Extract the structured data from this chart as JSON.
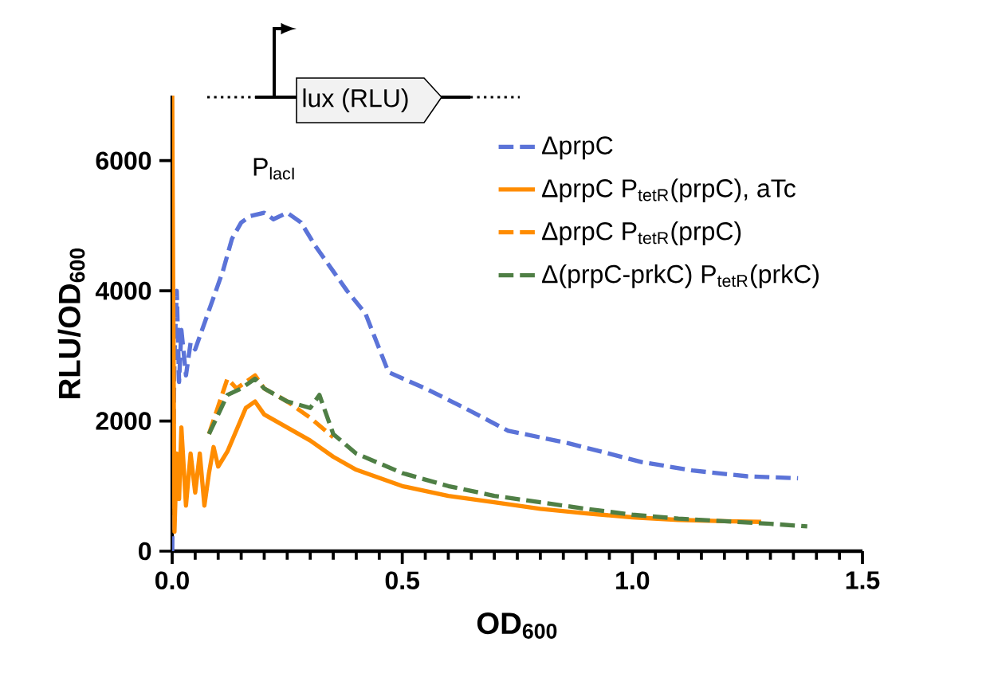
{
  "chart_data": {
    "type": "line",
    "xlabel": "OD$_{600}$",
    "ylabel": "RLU/OD$_{600}$",
    "annotations": [
      "lux (RLU)",
      "P$_{lacI}$"
    ],
    "xlim": [
      0,
      1.5
    ],
    "ylim": [
      0,
      7000
    ],
    "xticks": [
      {
        "value": 0,
        "label": "0.0"
      },
      0.5,
      {
        "value": 1,
        "label": "1.0"
      },
      1.5
    ],
    "yticks": [
      0,
      2000,
      4000,
      6000
    ],
    "legend": "top right",
    "grid": false,
    "series": [
      {
        "name": "ΔprpC",
        "color": "#5b73d8",
        "line_style": "dashed",
        "x": [
          0,
          0.005,
          0.01,
          0.015,
          0.02,
          0.03,
          0.04,
          0.05,
          0.07,
          0.09,
          0.11,
          0.13,
          0.15,
          0.17,
          0.2,
          0.22,
          0.25,
          0.28,
          0.31,
          0.35,
          0.38,
          0.42,
          0.47,
          0.55,
          0.63,
          0.73,
          0.86,
          1.02,
          1.13,
          1.25,
          1.36
        ],
        "values": [
          0,
          3000,
          4000,
          2600,
          3400,
          2700,
          3200,
          3100,
          3500,
          3900,
          4300,
          4800,
          5050,
          5150,
          5200,
          5100,
          5200,
          5050,
          4700,
          4300,
          4000,
          3650,
          2750,
          2500,
          2220,
          1850,
          1660,
          1370,
          1240,
          1150,
          1120
        ]
      },
      {
        "name": "ΔprpC P$_{tetR}$(prpC), aTc",
        "color": "#ff8c00",
        "line_style": "solid",
        "x": [
          0,
          0.005,
          0.01,
          0.015,
          0.02,
          0.03,
          0.04,
          0.05,
          0.06,
          0.07,
          0.08,
          0.09,
          0.1,
          0.12,
          0.16,
          0.18,
          0.2,
          0.25,
          0.3,
          0.35,
          0.4,
          0.5,
          0.6,
          0.7,
          0.8,
          0.9,
          1.0,
          1.1,
          1.2,
          1.28
        ],
        "values": [
          7000,
          300,
          1500,
          800,
          1900,
          700,
          1500,
          900,
          1500,
          700,
          1200,
          1600,
          1300,
          1530,
          2200,
          2300,
          2100,
          1900,
          1700,
          1450,
          1250,
          1000,
          850,
          750,
          650,
          580,
          520,
          480,
          460,
          450
        ]
      },
      {
        "name": "ΔprpC P$_{tetR}$(prpC)",
        "color": "#ff8c00",
        "line_style": "dashed",
        "x": [
          0.08,
          0.12,
          0.14,
          0.16,
          0.18,
          0.2,
          0.25,
          0.3,
          0.35
        ],
        "values": [
          1800,
          2650,
          2500,
          2600,
          2700,
          2500,
          2300,
          2050,
          1750
        ]
      },
      {
        "name": "Δ(prpC-prkC) P$_{tetR}$(prkC)",
        "color": "#4f7f45",
        "line_style": "dashed",
        "x": [
          0.08,
          0.12,
          0.15,
          0.18,
          0.2,
          0.25,
          0.3,
          0.32,
          0.35,
          0.4,
          0.5,
          0.6,
          0.7,
          0.8,
          0.9,
          1.0,
          1.1,
          1.2,
          1.3,
          1.38
        ],
        "values": [
          1800,
          2400,
          2500,
          2650,
          2500,
          2300,
          2200,
          2400,
          1800,
          1500,
          1200,
          1000,
          850,
          750,
          650,
          560,
          500,
          460,
          420,
          380
        ]
      }
    ]
  }
}
